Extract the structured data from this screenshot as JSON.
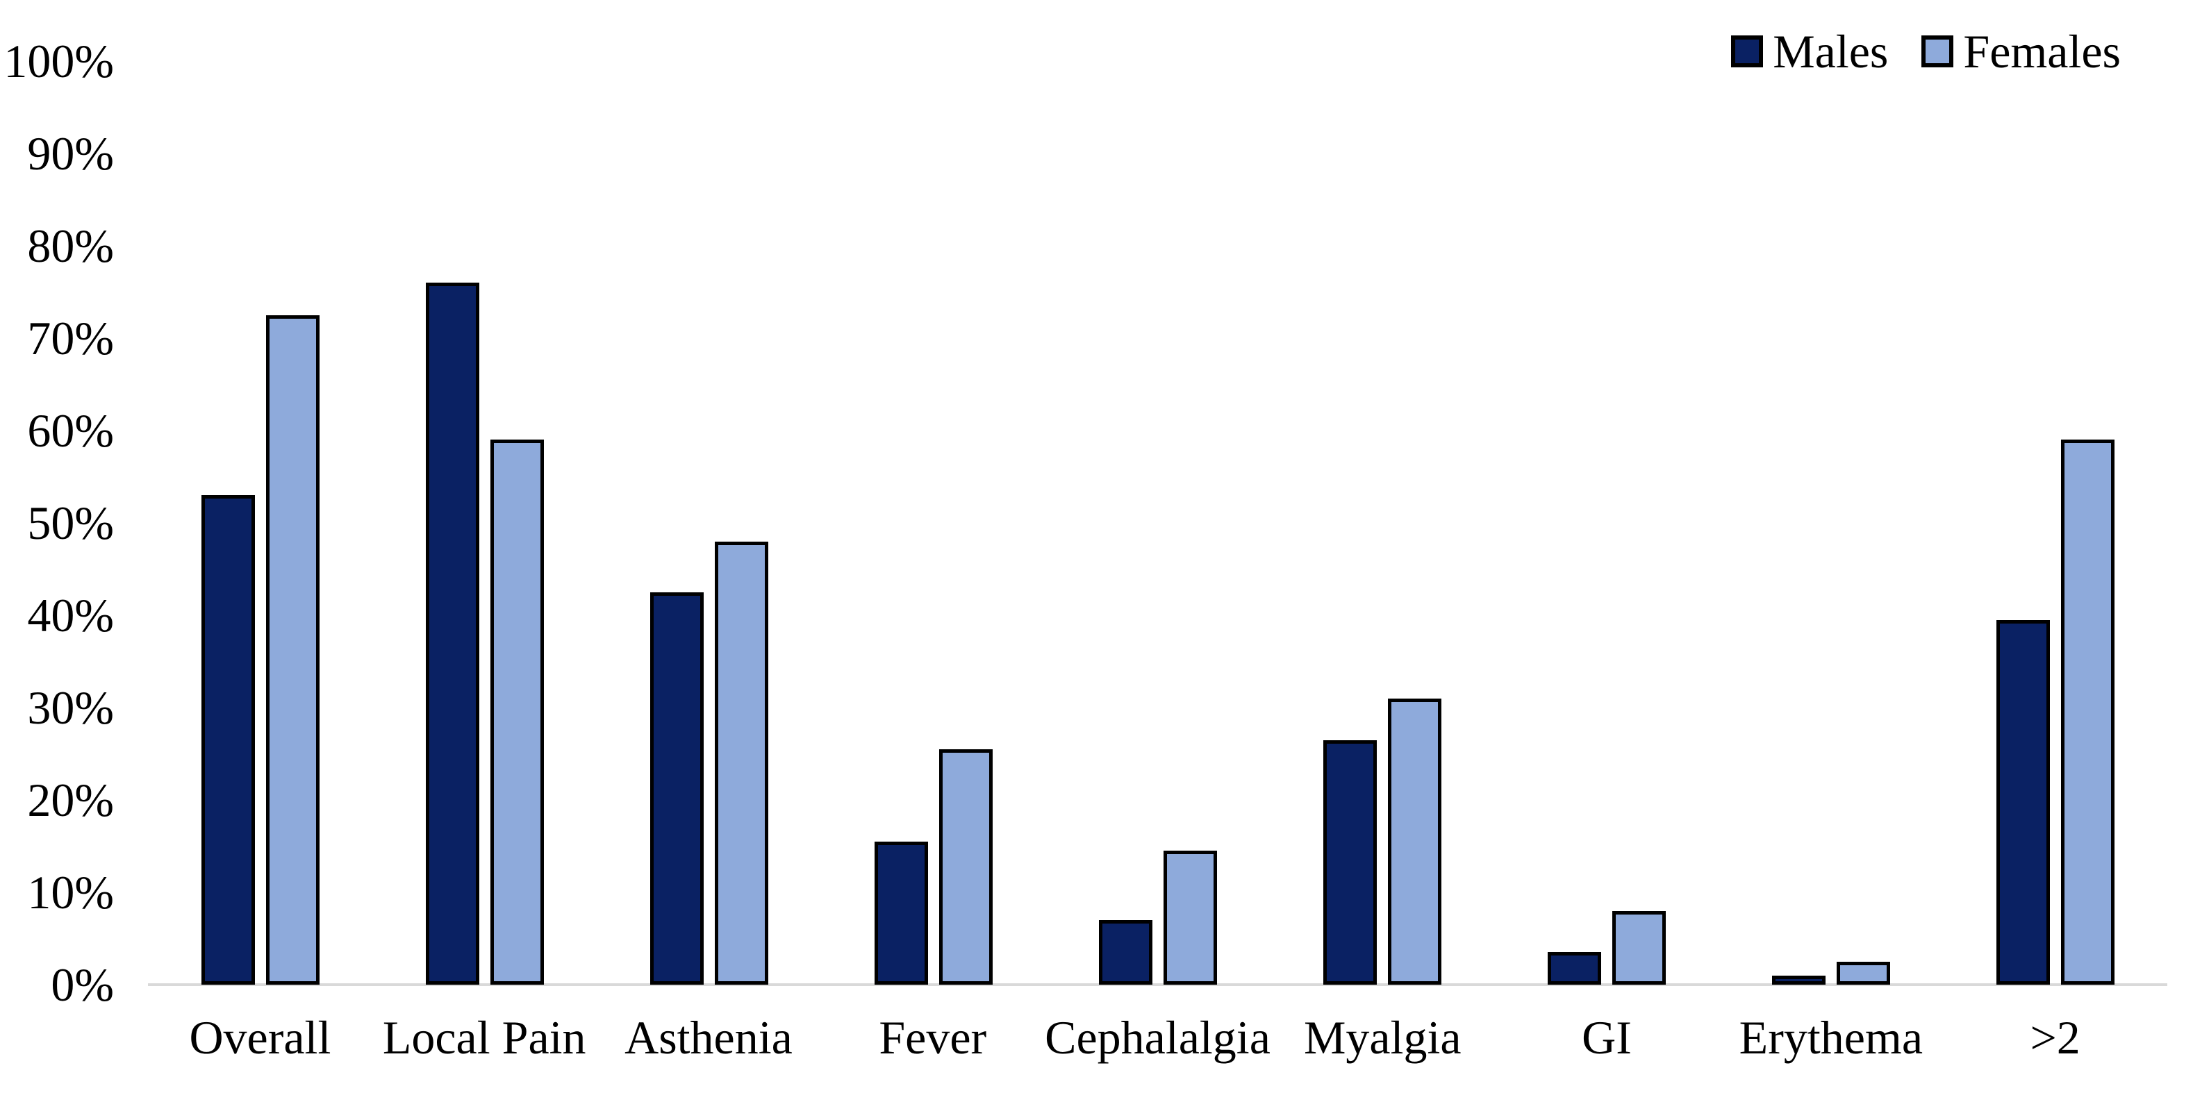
{
  "chart_data": {
    "type": "bar",
    "title": "",
    "xlabel": "",
    "ylabel": "",
    "categories": [
      "Overall",
      "Local Pain",
      "Asthenia",
      "Fever",
      "Cephalalgia",
      "Myalgia",
      "GI",
      "Erythema",
      ">2"
    ],
    "series": [
      {
        "name": "Males",
        "color": "#0A2163",
        "values": [
          53,
          76,
          42.5,
          15.5,
          7,
          26.5,
          3.5,
          1,
          39.5
        ]
      },
      {
        "name": "Females",
        "color": "#8EAADB",
        "values": [
          72.5,
          59,
          48,
          25.5,
          14.5,
          31,
          8,
          2.5,
          59
        ]
      }
    ],
    "ylim": [
      0,
      100
    ],
    "ytick_step": 10,
    "ytick_labels": [
      "0%",
      "10%",
      "20%",
      "30%",
      "40%",
      "50%",
      "60%",
      "70%",
      "80%",
      "90%",
      "100%"
    ],
    "grid": false,
    "legend_position": "top-right"
  },
  "legend": {
    "items": [
      {
        "label": "Males",
        "color": "#0A2163"
      },
      {
        "label": "Females",
        "color": "#8EAADB"
      }
    ]
  },
  "styles": {
    "bar_border_color": "#000000",
    "axis_line_color": "#D9D9D9",
    "text_color": "#000000",
    "background": "#FFFFFF"
  }
}
